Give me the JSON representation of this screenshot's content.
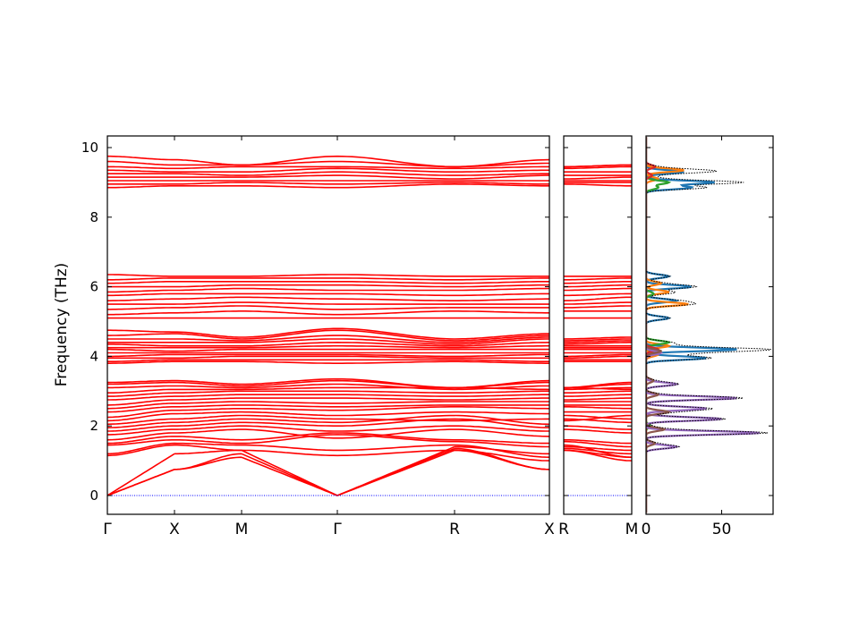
{
  "chart_data": [
    {
      "type": "line",
      "ylabel": "Frequency (THz)",
      "ylim": [
        -0.55,
        10.33
      ],
      "yticks": [
        "0",
        "2",
        "4",
        "6",
        "8",
        "10"
      ],
      "ytick_values": [
        0,
        2,
        4,
        6,
        8,
        10
      ],
      "xtick_labels": [
        "Γ",
        "X",
        "M",
        "Γ",
        "R",
        "X"
      ],
      "line_color": "#ff0000",
      "zero_line_color": "#0000ff",
      "bands_note_order": "frequencies at Γ, X, M, Γ, R, X (panel 1) then R, M (panel 2)",
      "bands": [
        [
          0,
          0.75,
          1.1,
          0,
          1.3,
          0.75,
          1.3,
          1.1
        ],
        [
          0,
          0.75,
          1.2,
          0,
          1.35,
          0.75,
          1.35,
          1.2
        ],
        [
          0,
          1.2,
          1.3,
          0,
          1.4,
          1.2,
          1.4,
          1.3
        ],
        [
          1.15,
          1.45,
          1.3,
          1.15,
          1.3,
          1.0,
          1.3,
          1.0
        ],
        [
          1.2,
          1.5,
          1.45,
          1.3,
          1.45,
          1.1,
          1.45,
          1.1
        ],
        [
          1.45,
          1.6,
          1.5,
          1.75,
          1.55,
          1.4,
          1.55,
          1.4
        ],
        [
          1.5,
          1.7,
          1.6,
          1.8,
          1.6,
          1.5,
          1.6,
          1.5
        ],
        [
          1.6,
          1.8,
          1.9,
          1.65,
          1.9,
          1.7,
          1.9,
          1.8
        ],
        [
          1.75,
          1.9,
          2.0,
          1.85,
          2.0,
          1.85,
          2.0,
          1.9
        ],
        [
          1.85,
          2.0,
          2.1,
          2.0,
          2.2,
          1.95,
          2.2,
          2.1
        ],
        [
          1.95,
          2.1,
          2.2,
          2.1,
          2.3,
          2.05,
          2.3,
          2.2
        ],
        [
          2.05,
          2.2,
          2.3,
          2.2,
          2.15,
          2.2,
          2.15,
          2.3
        ],
        [
          2.15,
          2.35,
          2.4,
          2.3,
          2.4,
          2.35,
          2.4,
          2.4
        ],
        [
          2.25,
          2.45,
          2.5,
          2.45,
          2.55,
          2.5,
          2.55,
          2.5
        ],
        [
          2.4,
          2.55,
          2.6,
          2.55,
          2.6,
          2.6,
          2.6,
          2.6
        ],
        [
          2.5,
          2.65,
          2.7,
          2.65,
          2.7,
          2.7,
          2.7,
          2.7
        ],
        [
          2.6,
          2.75,
          2.8,
          2.8,
          2.75,
          2.8,
          2.75,
          2.8
        ],
        [
          2.75,
          2.85,
          2.9,
          2.9,
          2.85,
          2.9,
          2.85,
          2.9
        ],
        [
          2.85,
          2.95,
          3.0,
          3.0,
          2.95,
          3.0,
          2.95,
          3.0
        ],
        [
          2.95,
          3.05,
          3.05,
          3.1,
          3.1,
          3.05,
          3.1,
          3.05
        ],
        [
          3.1,
          3.15,
          3.1,
          3.2,
          3.05,
          3.15,
          3.05,
          3.1
        ],
        [
          3.2,
          3.25,
          3.15,
          3.3,
          3.1,
          3.25,
          3.1,
          3.2
        ],
        [
          3.25,
          3.3,
          3.2,
          3.35,
          3.1,
          3.3,
          3.1,
          3.25
        ],
        [
          3.8,
          3.85,
          3.85,
          3.8,
          3.85,
          3.8,
          3.85,
          3.85
        ],
        [
          3.85,
          3.9,
          3.9,
          3.9,
          3.9,
          3.85,
          3.9,
          3.9
        ],
        [
          3.95,
          3.95,
          4.0,
          4.0,
          3.95,
          3.95,
          3.95,
          4.0
        ],
        [
          4.0,
          4.05,
          4.05,
          4.05,
          4.0,
          4.05,
          4.0,
          4.05
        ],
        [
          4.1,
          4.1,
          4.1,
          4.1,
          4.1,
          4.1,
          4.1,
          4.1
        ],
        [
          4.2,
          4.15,
          4.2,
          4.2,
          4.2,
          4.2,
          4.2,
          4.2
        ],
        [
          4.25,
          4.25,
          4.25,
          4.3,
          4.25,
          4.3,
          4.25,
          4.25
        ],
        [
          4.35,
          4.3,
          4.3,
          4.4,
          4.3,
          4.4,
          4.3,
          4.3
        ],
        [
          4.4,
          4.4,
          4.4,
          4.5,
          4.35,
          4.5,
          4.35,
          4.4
        ],
        [
          4.5,
          4.5,
          4.45,
          4.6,
          4.4,
          4.55,
          4.4,
          4.45
        ],
        [
          4.6,
          4.65,
          4.5,
          4.75,
          4.45,
          4.6,
          4.45,
          4.5
        ],
        [
          4.75,
          4.7,
          4.55,
          4.8,
          4.5,
          4.65,
          4.5,
          4.55
        ],
        [
          5.1,
          5.1,
          5.1,
          5.1,
          5.1,
          5.1,
          5.1,
          5.1
        ],
        [
          5.2,
          5.25,
          5.3,
          5.2,
          5.3,
          5.25,
          5.3,
          5.3
        ],
        [
          5.35,
          5.4,
          5.45,
          5.35,
          5.4,
          5.4,
          5.4,
          5.45
        ],
        [
          5.5,
          5.5,
          5.55,
          5.5,
          5.5,
          5.5,
          5.5,
          5.55
        ],
        [
          5.6,
          5.65,
          5.7,
          5.65,
          5.6,
          5.65,
          5.6,
          5.7
        ],
        [
          5.75,
          5.8,
          5.8,
          5.8,
          5.75,
          5.8,
          5.75,
          5.8
        ],
        [
          5.85,
          5.9,
          5.95,
          5.9,
          5.9,
          5.95,
          5.9,
          5.95
        ],
        [
          6.0,
          6.0,
          6.05,
          6.05,
          6.0,
          6.05,
          6.0,
          6.05
        ],
        [
          6.1,
          6.15,
          6.15,
          6.15,
          6.1,
          6.15,
          6.1,
          6.15
        ],
        [
          6.2,
          6.25,
          6.25,
          6.25,
          6.2,
          6.25,
          6.2,
          6.25
        ],
        [
          6.35,
          6.3,
          6.3,
          6.35,
          6.3,
          6.3,
          6.3,
          6.3
        ],
        [
          8.85,
          8.9,
          8.9,
          8.85,
          8.95,
          8.9,
          8.95,
          8.9
        ],
        [
          8.95,
          8.95,
          9.0,
          8.95,
          9.0,
          8.95,
          9.0,
          9.0
        ],
        [
          9.05,
          9.05,
          9.05,
          9.05,
          9.05,
          9.05,
          9.05,
          9.05
        ],
        [
          9.15,
          9.15,
          9.15,
          9.2,
          9.1,
          9.2,
          9.1,
          9.15
        ],
        [
          9.25,
          9.25,
          9.2,
          9.3,
          9.2,
          9.25,
          9.2,
          9.2
        ],
        [
          9.35,
          9.3,
          9.3,
          9.4,
          9.3,
          9.35,
          9.3,
          9.3
        ],
        [
          9.45,
          9.4,
          9.45,
          9.45,
          9.4,
          9.45,
          9.4,
          9.45
        ],
        [
          9.6,
          9.5,
          9.5,
          9.6,
          9.45,
          9.55,
          9.45,
          9.5
        ],
        [
          9.75,
          9.65,
          9.5,
          9.75,
          9.45,
          9.65,
          9.45,
          9.5
        ]
      ]
    },
    {
      "type": "line",
      "xtick_labels": [
        "R",
        "M"
      ]
    },
    {
      "type": "line",
      "xlim": [
        0,
        84
      ],
      "xticks": [
        "0",
        "50"
      ],
      "xtick_values": [
        0,
        50
      ],
      "series": [
        {
          "color": "#1f77b4",
          "peaks": [
            [
              9.0,
              45
            ],
            [
              9.3,
              25
            ],
            [
              8.85,
              30
            ],
            [
              6.3,
              15
            ],
            [
              6.0,
              30
            ],
            [
              5.6,
              20
            ],
            [
              5.1,
              15
            ],
            [
              4.2,
              60
            ],
            [
              3.95,
              40
            ]
          ]
        },
        {
          "color": "#ff7f0e",
          "peaks": [
            [
              9.35,
              25
            ],
            [
              9.1,
              8
            ],
            [
              6.1,
              10
            ],
            [
              5.85,
              15
            ],
            [
              5.5,
              28
            ],
            [
              4.3,
              15
            ],
            [
              4.05,
              8
            ]
          ]
        },
        {
          "color": "#2ca02c",
          "peaks": [
            [
              9.0,
              15
            ],
            [
              8.85,
              8
            ],
            [
              5.8,
              5
            ],
            [
              4.4,
              15
            ],
            [
              4.1,
              8
            ],
            [
              2.0,
              3
            ]
          ]
        },
        {
          "color": "#d62728",
          "peaks": [
            [
              9.45,
              6
            ],
            [
              9.2,
              4
            ],
            [
              4.2,
              8
            ]
          ]
        },
        {
          "color": "#9467bd",
          "peaks": [
            [
              4.1,
              10
            ],
            [
              3.2,
              20
            ],
            [
              2.8,
              60
            ],
            [
              2.5,
              40
            ],
            [
              2.2,
              50
            ],
            [
              1.8,
              75
            ],
            [
              1.4,
              20
            ]
          ]
        },
        {
          "color": "#8c564b",
          "peaks": [
            [
              4.15,
              10
            ],
            [
              3.3,
              5
            ],
            [
              2.9,
              8
            ],
            [
              2.4,
              15
            ],
            [
              1.9,
              12
            ],
            [
              1.5,
              6
            ]
          ]
        }
      ],
      "total_color": "#000000"
    }
  ]
}
